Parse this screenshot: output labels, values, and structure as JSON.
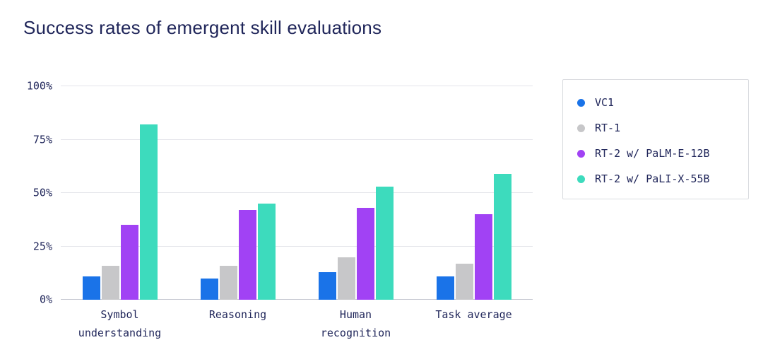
{
  "chart_data": {
    "type": "bar",
    "title": "Success rates of emergent skill evaluations",
    "categories": [
      "Symbol understanding",
      "Reasoning",
      "Human recognition",
      "Task average"
    ],
    "series": [
      {
        "name": "VC1",
        "color": "#1a73e8",
        "values": [
          11,
          10,
          13,
          11
        ]
      },
      {
        "name": "RT-1",
        "color": "#c7c7c9",
        "values": [
          16,
          16,
          20,
          17
        ]
      },
      {
        "name": "RT-2 w/ PaLM-E-12B",
        "color": "#a142f4",
        "values": [
          35,
          42,
          43,
          40
        ]
      },
      {
        "name": "RT-2 w/ PaLI-X-55B",
        "color": "#3ddbbd",
        "values": [
          82,
          45,
          53,
          59
        ]
      }
    ],
    "y_ticks": [
      "0%",
      "25%",
      "50%",
      "75%",
      "100%"
    ],
    "ylim": [
      0,
      100
    ],
    "grid": true,
    "legend_position": "right",
    "text_color": "#20265a"
  }
}
